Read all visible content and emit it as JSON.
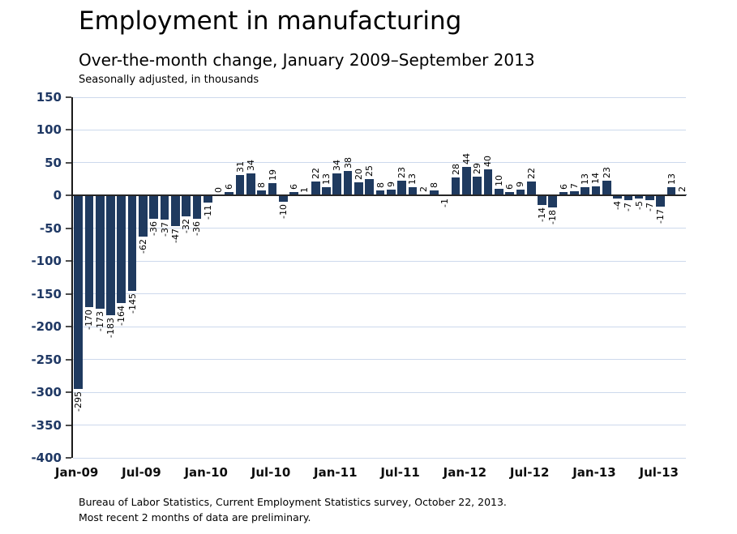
{
  "page": {
    "title": "Employment in manufacturing",
    "subtitle": "Over-the-month change, January 2009–September 2013",
    "units_note": "Seasonally adjusted, in thousands",
    "footer_source": "Bureau of Labor Statistics, Current Employment Statistics survey, October 22, 2013.",
    "footer_note": "Most recent 2 months of data are preliminary."
  },
  "colors": {
    "bar": "#1f3a5f",
    "gridline": "#cdd9ec",
    "zero_line": "#262626",
    "y_axis_label": "#1f3864",
    "x_axis_label": "#0d0d0d",
    "bar_label": "#000000"
  },
  "chart_data": {
    "type": "bar",
    "title": "Employment in manufacturing",
    "subtitle": "Over-the-month change, January 2009–September 2013",
    "ylabel": "Seasonally adjusted, in thousands",
    "ylim": [
      -400,
      150
    ],
    "ytick_step": 50,
    "grid": true,
    "legend": false,
    "bar_labels_rotated": true,
    "xtick_labels_shown": [
      "Jan-09",
      "Jul-09",
      "Jan-10",
      "Jul-10",
      "Jan-11",
      "Jul-11",
      "Jan-12",
      "Jul-12",
      "Jan-13",
      "Jul-13"
    ],
    "categories": [
      "Jan-09",
      "Feb-09",
      "Mar-09",
      "Apr-09",
      "May-09",
      "Jun-09",
      "Jul-09",
      "Aug-09",
      "Sep-09",
      "Oct-09",
      "Nov-09",
      "Dec-09",
      "Jan-10",
      "Feb-10",
      "Mar-10",
      "Apr-10",
      "May-10",
      "Jun-10",
      "Jul-10",
      "Aug-10",
      "Sep-10",
      "Oct-10",
      "Nov-10",
      "Dec-10",
      "Jan-11",
      "Feb-11",
      "Mar-11",
      "Apr-11",
      "May-11",
      "Jun-11",
      "Jul-11",
      "Aug-11",
      "Sep-11",
      "Oct-11",
      "Nov-11",
      "Dec-11",
      "Jan-12",
      "Feb-12",
      "Mar-12",
      "Apr-12",
      "May-12",
      "Jun-12",
      "Jul-12",
      "Aug-12",
      "Sep-12",
      "Oct-12",
      "Nov-12",
      "Dec-12",
      "Jan-13",
      "Feb-13",
      "Mar-13",
      "Apr-13",
      "May-13",
      "Jun-13",
      "Jul-13",
      "Aug-13",
      "Sep-13"
    ],
    "values": [
      -295,
      -170,
      -173,
      -183,
      -164,
      -145,
      -62,
      -36,
      -37,
      -47,
      -32,
      -36,
      -11,
      0,
      6,
      31,
      34,
      8,
      19,
      -10,
      6,
      1,
      22,
      13,
      34,
      38,
      20,
      25,
      8,
      9,
      23,
      13,
      2,
      8,
      -1,
      28,
      44,
      29,
      40,
      10,
      6,
      9,
      22,
      -14,
      -18,
      6,
      7,
      13,
      14,
      23,
      -4,
      -7,
      -5,
      -7,
      -17,
      13,
      2
    ]
  }
}
